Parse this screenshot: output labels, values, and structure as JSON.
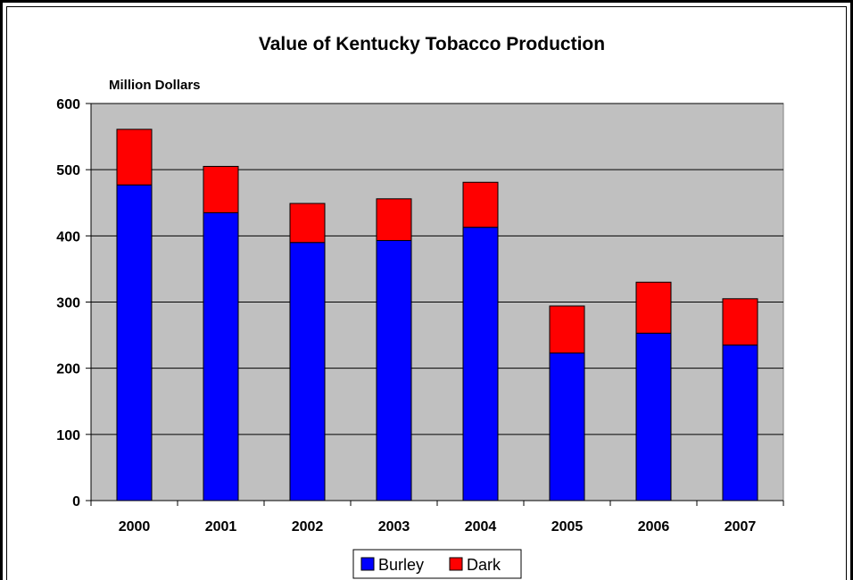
{
  "chart_data": {
    "type": "bar",
    "stacked": true,
    "title": "Value of Kentucky Tobacco Production",
    "ylabel": "Million Dollars",
    "xlabel": "",
    "categories": [
      "2000",
      "2001",
      "2002",
      "2003",
      "2004",
      "2005",
      "2006",
      "2007"
    ],
    "series": [
      {
        "name": "Burley",
        "color": "#0000ff",
        "values": [
          477,
          435,
          390,
          393,
          413,
          223,
          253,
          235
        ]
      },
      {
        "name": "Dark",
        "color": "#ff0000",
        "values": [
          84,
          70,
          59,
          63,
          68,
          71,
          77,
          70
        ]
      }
    ],
    "ylim": [
      0,
      600
    ],
    "yticks": [
      "0",
      "100",
      "200",
      "300",
      "400",
      "500",
      "600"
    ],
    "grid": true,
    "plot_background": "#c0c0c0",
    "legend_position": "bottom"
  }
}
